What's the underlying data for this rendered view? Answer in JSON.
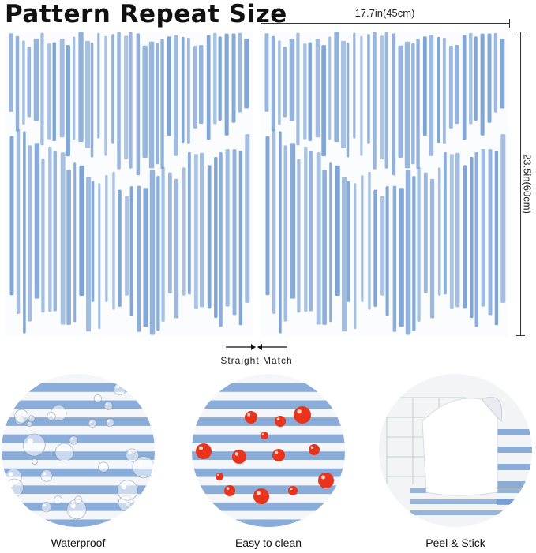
{
  "title": "Pattern Repeat Size",
  "dimensions": {
    "width_label": "17.7in(45cm)",
    "height_label": "23.5in(60cm)"
  },
  "match": {
    "label": "Straight Match",
    "arrow_icon": "arrows-converging-icon"
  },
  "features": [
    {
      "label": "Waterproof",
      "icon": "water-droplets-icon"
    },
    {
      "label": "Easy to clean",
      "icon": "red-droplets-icon"
    },
    {
      "label": "Peel & Stick",
      "icon": "peeling-corner-icon"
    }
  ],
  "colors": {
    "stripe": "#6f9ad0",
    "background": "#ffffff",
    "drop_red": "#e8341c"
  }
}
